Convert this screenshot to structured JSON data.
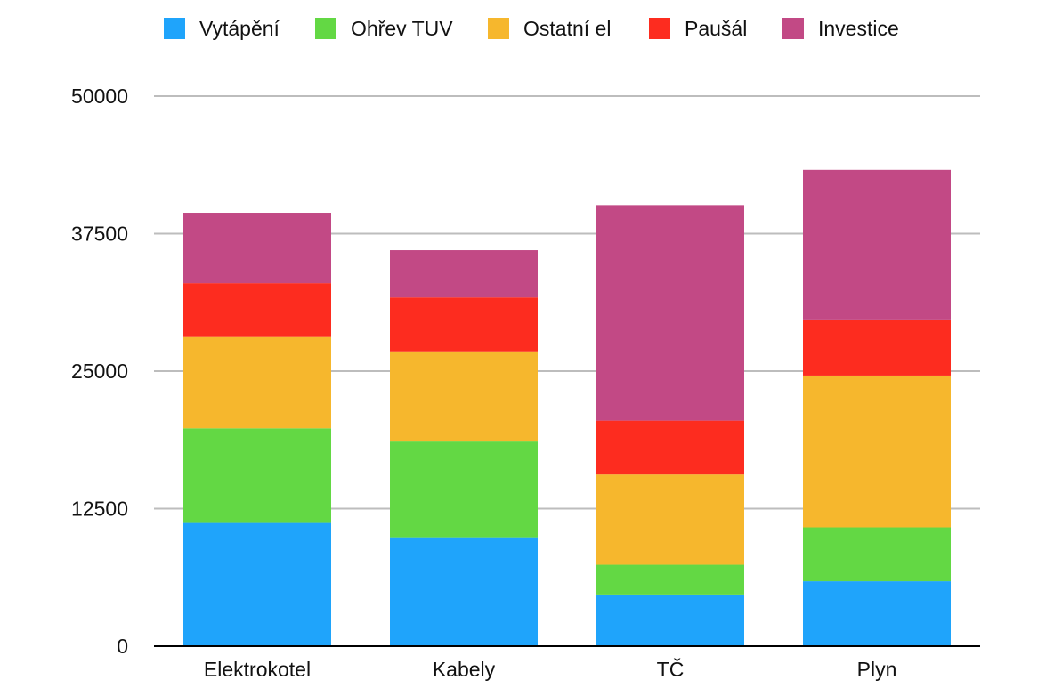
{
  "chart_data": {
    "type": "bar",
    "stacked": true,
    "categories": [
      "Elektrokotel",
      "Kabely",
      "TČ",
      "Plyn"
    ],
    "series": [
      {
        "name": "Vytápění",
        "color": "#1fa4fb",
        "values": [
          11200,
          9900,
          4700,
          5900
        ]
      },
      {
        "name": "Ohřev TUV",
        "color": "#63d844",
        "values": [
          8600,
          8700,
          2700,
          4900
        ]
      },
      {
        "name": "Ostatní el",
        "color": "#f6b72d",
        "values": [
          8300,
          8200,
          8200,
          13800
        ]
      },
      {
        "name": "Paušál",
        "color": "#fd2c1f",
        "values": [
          4900,
          4900,
          4900,
          5100
        ]
      },
      {
        "name": "Investice",
        "color": "#c24985",
        "values": [
          6400,
          4300,
          19600,
          13600
        ]
      }
    ],
    "yticks": [
      "0",
      "12500",
      "25000",
      "37500",
      "50000"
    ],
    "ylim": [
      0,
      50000
    ],
    "grid": true,
    "legend_position": "top",
    "title": "",
    "xlabel": "",
    "ylabel": ""
  }
}
